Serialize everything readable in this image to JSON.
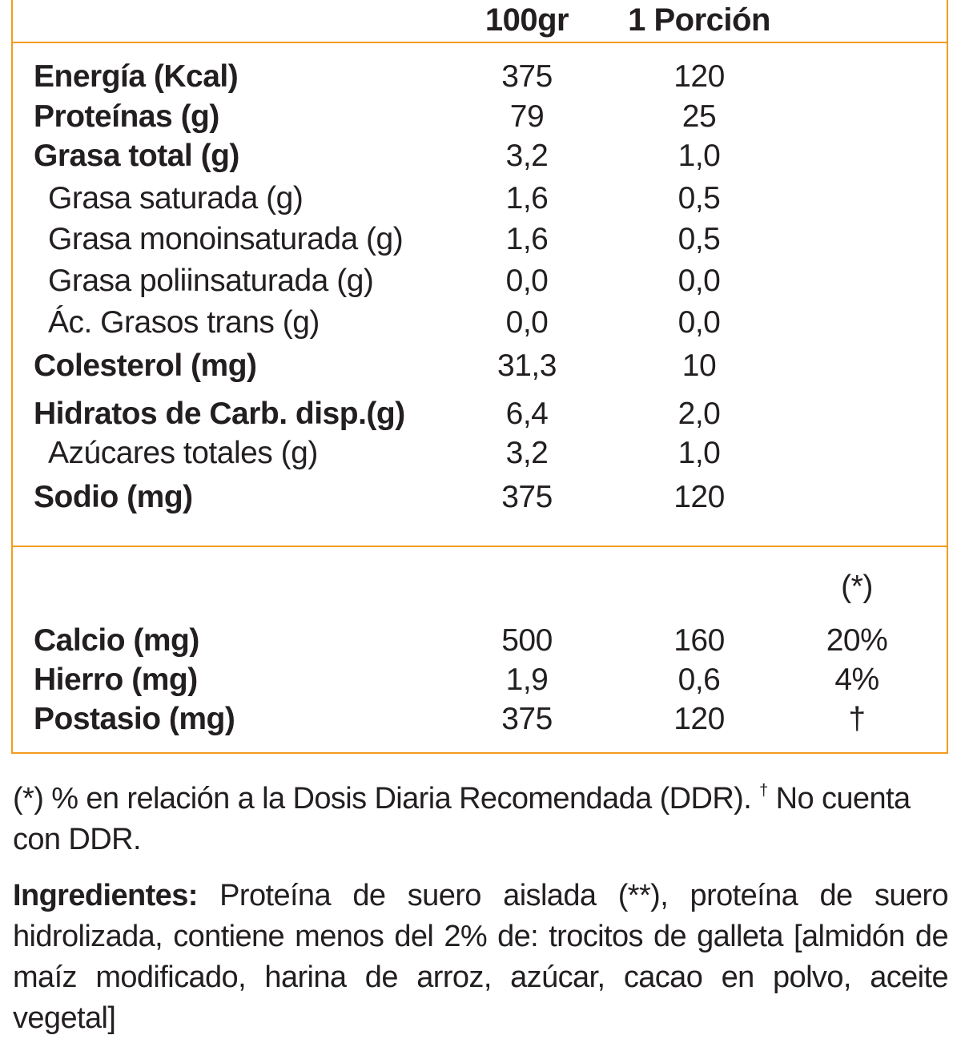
{
  "header": {
    "col_100g": "100gr",
    "col_portion": "1 Porción"
  },
  "rows": [
    {
      "label": "Energía (Kcal)",
      "per100": "375",
      "portion": "120"
    },
    {
      "label": "Proteínas (g)",
      "per100": "79",
      "portion": "25"
    },
    {
      "label": "Grasa total (g)",
      "per100": "3,2",
      "portion": "1,0"
    },
    {
      "label": "Grasa saturada (g)",
      "per100": "1,6",
      "portion": "0,5"
    },
    {
      "label": "Grasa monoinsaturada (g)",
      "per100": "1,6",
      "portion": "0,5"
    },
    {
      "label": "Grasa poliinsaturada (g)",
      "per100": "0,0",
      "portion": "0,0"
    },
    {
      "label": "Ác. Grasos trans (g)",
      "per100": "0,0",
      "portion": "0,0"
    },
    {
      "label": "Colesterol (mg)",
      "per100": "31,3",
      "portion": "10"
    },
    {
      "label": "Hidratos de Carb. disp.(g)",
      "per100": "6,4",
      "portion": "2,0"
    },
    {
      "label": "Azúcares totales (g)",
      "per100": "3,2",
      "portion": "1,0"
    },
    {
      "label": "Sodio (mg)",
      "per100": "375",
      "portion": "120"
    }
  ],
  "minerals": {
    "ddr_header": "(*)",
    "rows": [
      {
        "label": "Calcio (mg)",
        "per100": "500",
        "portion": "160",
        "ddr": "20%"
      },
      {
        "label": "Hierro (mg)",
        "per100": "1,9",
        "portion": "0,6",
        "ddr": "4%"
      },
      {
        "label": "Postasio (mg)",
        "per100": "375",
        "portion": "120",
        "ddr": "†"
      }
    ]
  },
  "footnote": {
    "text1": "(*) % en relación a la Dosis Diaria Recomendada (DDR). ",
    "dagger": "†",
    "text2": " No cuenta con DDR."
  },
  "ingredients": {
    "title": "Ingredientes:",
    "text": " Proteína de suero aislada (**), proteína de suero hidrolizada, contiene menos del 2% de: trocitos de galleta [almidón de maíz modificado, harina de arroz, azúcar, cacao en polvo, aceite vegetal]"
  },
  "colors": {
    "border": "#f39c1f",
    "text": "#231f20"
  }
}
